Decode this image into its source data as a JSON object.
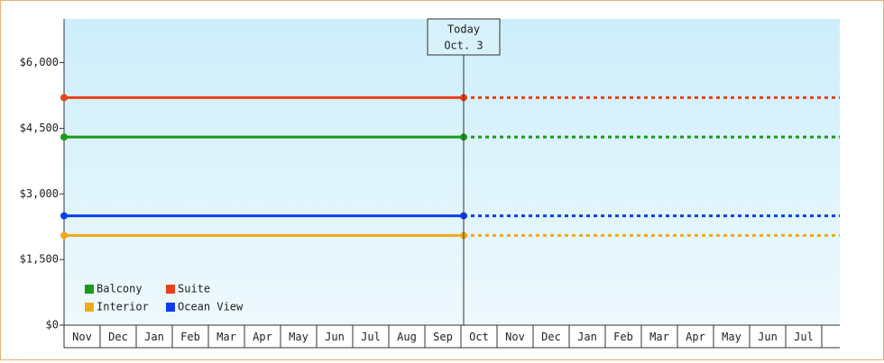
{
  "chart_data": {
    "type": "line",
    "categories": [
      "Nov",
      "Dec",
      "Jan",
      "Feb",
      "Mar",
      "Apr",
      "May",
      "Jun",
      "Jul",
      "Aug",
      "Sep",
      "Oct",
      "Nov",
      "Dec",
      "Jan",
      "Feb",
      "Mar",
      "Apr",
      "May",
      "Jun",
      "Jul"
    ],
    "series": [
      {
        "name": "Balcony",
        "color": "#1a9a1a",
        "values": [
          4300,
          4300,
          4300,
          4300,
          4300,
          4300,
          4300,
          4300,
          4300,
          4300,
          4300,
          4300,
          4300,
          4300,
          4300,
          4300,
          4300,
          4300,
          4300,
          4300,
          4300
        ]
      },
      {
        "name": "Suite",
        "color": "#e8411a",
        "values": [
          5200,
          5200,
          5200,
          5200,
          5200,
          5200,
          5200,
          5200,
          5200,
          5200,
          5200,
          5200,
          5200,
          5200,
          5200,
          5200,
          5200,
          5200,
          5200,
          5200,
          5200
        ]
      },
      {
        "name": "Interior",
        "color": "#f0a91a",
        "values": [
          2050,
          2050,
          2050,
          2050,
          2050,
          2050,
          2050,
          2050,
          2050,
          2050,
          2050,
          2050,
          2050,
          2050,
          2050,
          2050,
          2050,
          2050,
          2050,
          2050,
          2050
        ]
      },
      {
        "name": "Ocean View",
        "color": "#0a3ef0",
        "values": [
          2500,
          2500,
          2500,
          2500,
          2500,
          2500,
          2500,
          2500,
          2500,
          2500,
          2500,
          2500,
          2500,
          2500,
          2500,
          2500,
          2500,
          2500,
          2500,
          2500,
          2500
        ]
      }
    ],
    "ylim": [
      0,
      7000
    ],
    "yticks": [
      {
        "value": 0,
        "label": "$0"
      },
      {
        "value": 1500,
        "label": "$1,500"
      },
      {
        "value": 3000,
        "label": "$3,000"
      },
      {
        "value": 4500,
        "label": "$4,500"
      },
      {
        "value": 6000,
        "label": "$6,000"
      }
    ],
    "today": {
      "label": "Today",
      "date": "Oct. 3"
    }
  }
}
